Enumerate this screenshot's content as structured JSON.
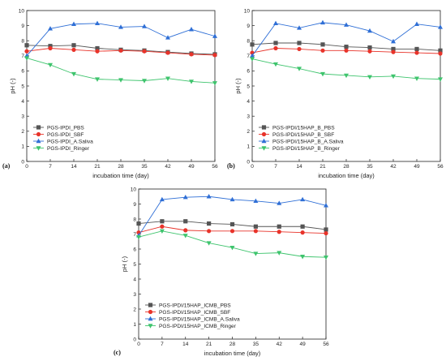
{
  "chart_data": [
    {
      "type": "line",
      "panel_label": "(a)",
      "xlabel": "incubation time (day)",
      "ylabel": "pH (-)",
      "xlim": [
        0,
        56
      ],
      "ylim": [
        0,
        10
      ],
      "x": [
        0,
        7,
        14,
        21,
        28,
        35,
        42,
        49,
        56
      ],
      "yticks": [
        0,
        1,
        2,
        3,
        4,
        5,
        6,
        7,
        8,
        9,
        10
      ],
      "legend_position": "lower-left",
      "grid": false,
      "series": [
        {
          "name": "PGS-IPDI_PBS",
          "color": "#555555",
          "marker": "square",
          "values": [
            7.7,
            7.65,
            7.7,
            7.5,
            7.4,
            7.35,
            7.25,
            7.15,
            7.1
          ]
        },
        {
          "name": "PGS-IPDI_SBF",
          "color": "#e8332a",
          "marker": "circle",
          "values": [
            7.3,
            7.5,
            7.4,
            7.3,
            7.35,
            7.3,
            7.2,
            7.1,
            7.05
          ]
        },
        {
          "name": "PGS-IPDI_A.Saliva",
          "color": "#2f6fd6",
          "marker": "triangle-up",
          "values": [
            7.0,
            8.8,
            9.1,
            9.15,
            8.9,
            8.95,
            8.2,
            8.75,
            8.3
          ]
        },
        {
          "name": "PGS-IPDI_Ringer",
          "color": "#3ec46d",
          "marker": "triangle-down",
          "values": [
            6.85,
            6.4,
            5.8,
            5.45,
            5.4,
            5.35,
            5.5,
            5.3,
            5.2
          ]
        }
      ]
    },
    {
      "type": "line",
      "panel_label": "(b)",
      "xlabel": "incubation time (day)",
      "ylabel": "pH (-)",
      "xlim": [
        0,
        56
      ],
      "ylim": [
        0,
        10
      ],
      "x": [
        0,
        7,
        14,
        21,
        28,
        35,
        42,
        49,
        56
      ],
      "yticks": [
        0,
        1,
        2,
        3,
        4,
        5,
        6,
        7,
        8,
        9,
        10
      ],
      "legend_position": "lower-left",
      "grid": false,
      "series": [
        {
          "name": "PGS-IPDI/15HAP_B_PBS",
          "color": "#555555",
          "marker": "square",
          "values": [
            7.75,
            7.85,
            7.85,
            7.75,
            7.6,
            7.55,
            7.45,
            7.45,
            7.35
          ]
        },
        {
          "name": "PGS-IPDI/15HAP_B_SBF",
          "color": "#e8332a",
          "marker": "circle",
          "values": [
            7.2,
            7.5,
            7.45,
            7.35,
            7.35,
            7.3,
            7.25,
            7.2,
            7.15
          ]
        },
        {
          "name": "PGS-IPDI/15HAP_B_A.Saliva",
          "color": "#2f6fd6",
          "marker": "triangle-up",
          "values": [
            7.0,
            9.15,
            8.85,
            9.2,
            9.05,
            8.65,
            7.95,
            9.1,
            8.9
          ]
        },
        {
          "name": "PGS-IPDI/15HAP_B_Ringer",
          "color": "#3ec46d",
          "marker": "triangle-down",
          "values": [
            6.8,
            6.45,
            6.15,
            5.8,
            5.7,
            5.6,
            5.65,
            5.5,
            5.45
          ]
        }
      ]
    },
    {
      "type": "line",
      "panel_label": "(c)",
      "xlabel": "incubation time (day)",
      "ylabel": "pH (-)",
      "xlim": [
        0,
        56
      ],
      "ylim": [
        0,
        10
      ],
      "x": [
        0,
        7,
        14,
        21,
        28,
        35,
        42,
        49,
        56
      ],
      "yticks": [
        0,
        1,
        2,
        3,
        4,
        5,
        6,
        7,
        8,
        9,
        10
      ],
      "legend_position": "lower-left",
      "grid": false,
      "series": [
        {
          "name": "PGS-IPDI/15HAP_ICMB_PBS",
          "color": "#555555",
          "marker": "square",
          "values": [
            7.7,
            7.85,
            7.85,
            7.7,
            7.65,
            7.5,
            7.5,
            7.5,
            7.3
          ]
        },
        {
          "name": "PGS-IPDI/15HAP_ICMB_SBF",
          "color": "#e8332a",
          "marker": "circle",
          "values": [
            7.1,
            7.5,
            7.25,
            7.2,
            7.2,
            7.2,
            7.15,
            7.1,
            7.05
          ]
        },
        {
          "name": "PGS-IPDI/15HAP_ICMB_A.Saliva",
          "color": "#2f6fd6",
          "marker": "triangle-up",
          "values": [
            6.9,
            9.3,
            9.45,
            9.5,
            9.3,
            9.2,
            9.05,
            9.3,
            8.9
          ]
        },
        {
          "name": "PGS-IPDI/15HAP_ICMB_Ringer",
          "color": "#3ec46d",
          "marker": "triangle-down",
          "values": [
            6.8,
            7.2,
            6.9,
            6.4,
            6.1,
            5.7,
            5.75,
            5.5,
            5.45
          ]
        }
      ]
    }
  ]
}
